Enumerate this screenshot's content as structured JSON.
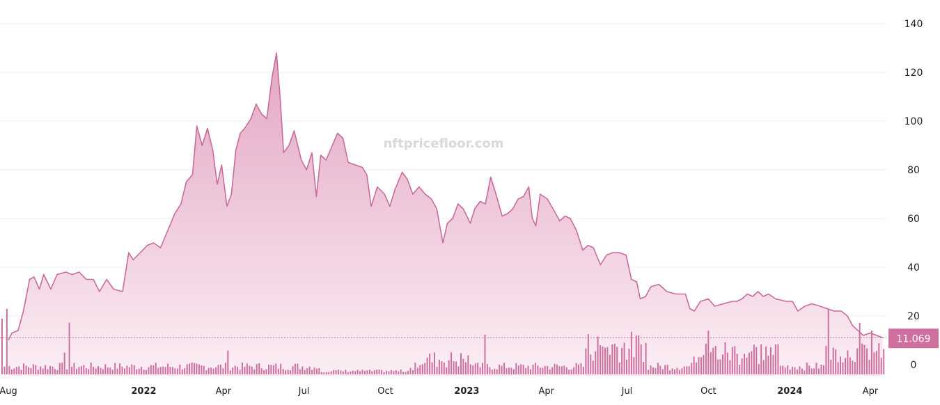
{
  "watermark": "nftpricefloor.com",
  "colors": {
    "line": "#c96b9c",
    "area_top": "#e3a6c4",
    "area_bottom": "#fbeef4",
    "volume": "#cf6f9f",
    "last_bg": "#cf6f9f"
  },
  "chart_data": {
    "type": "area",
    "ylim": [
      -5,
      142
    ],
    "y_ticks": [
      0,
      20,
      40,
      60,
      80,
      100,
      120,
      140
    ],
    "x_ticks": [
      {
        "label": "Aug",
        "date": "2021-08-01",
        "bold": false
      },
      {
        "label": "2022",
        "date": "2022-01-01",
        "bold": true
      },
      {
        "label": "Apr",
        "date": "2022-04-01",
        "bold": false
      },
      {
        "label": "Jul",
        "date": "2022-07-01",
        "bold": false
      },
      {
        "label": "Oct",
        "date": "2022-10-01",
        "bold": false
      },
      {
        "label": "2023",
        "date": "2023-01-01",
        "bold": true
      },
      {
        "label": "Apr",
        "date": "2023-04-01",
        "bold": false
      },
      {
        "label": "Jul",
        "date": "2023-07-01",
        "bold": false
      },
      {
        "label": "Oct",
        "date": "2023-10-01",
        "bold": false
      },
      {
        "label": "2024",
        "date": "2024-01-01",
        "bold": true
      },
      {
        "label": "Apr",
        "date": "2024-04-01",
        "bold": false
      }
    ],
    "last_value": "11.069",
    "last_value_num": 11.069,
    "floor_price": [
      [
        "2021-08-01",
        10
      ],
      [
        "2021-08-05",
        13
      ],
      [
        "2021-08-12",
        14
      ],
      [
        "2021-08-18",
        22
      ],
      [
        "2021-08-25",
        35
      ],
      [
        "2021-08-30",
        36
      ],
      [
        "2021-09-05",
        31
      ],
      [
        "2021-09-10",
        37
      ],
      [
        "2021-09-18",
        31
      ],
      [
        "2021-09-25",
        37
      ],
      [
        "2021-10-05",
        38
      ],
      [
        "2021-10-12",
        37
      ],
      [
        "2021-10-20",
        38
      ],
      [
        "2021-10-28",
        35
      ],
      [
        "2021-11-05",
        35
      ],
      [
        "2021-11-12",
        30
      ],
      [
        "2021-11-20",
        35
      ],
      [
        "2021-11-28",
        31
      ],
      [
        "2021-12-08",
        30
      ],
      [
        "2021-12-15",
        46
      ],
      [
        "2021-12-20",
        43
      ],
      [
        "2021-12-28",
        46
      ],
      [
        "2022-01-05",
        49
      ],
      [
        "2022-01-12",
        50
      ],
      [
        "2022-01-20",
        48
      ],
      [
        "2022-01-28",
        55
      ],
      [
        "2022-02-05",
        62
      ],
      [
        "2022-02-12",
        66
      ],
      [
        "2022-02-18",
        75
      ],
      [
        "2022-02-25",
        78
      ],
      [
        "2022-03-02",
        98
      ],
      [
        "2022-03-08",
        90
      ],
      [
        "2022-03-14",
        97
      ],
      [
        "2022-03-20",
        88
      ],
      [
        "2022-03-25",
        74
      ],
      [
        "2022-03-30",
        82
      ],
      [
        "2022-04-05",
        65
      ],
      [
        "2022-04-10",
        70
      ],
      [
        "2022-04-15",
        88
      ],
      [
        "2022-04-20",
        95
      ],
      [
        "2022-04-25",
        97
      ],
      [
        "2022-05-02",
        101
      ],
      [
        "2022-05-08",
        107
      ],
      [
        "2022-05-14",
        103
      ],
      [
        "2022-05-20",
        101
      ],
      [
        "2022-05-26",
        118
      ],
      [
        "2022-05-31",
        128
      ],
      [
        "2022-06-04",
        110
      ],
      [
        "2022-06-08",
        87
      ],
      [
        "2022-06-14",
        90
      ],
      [
        "2022-06-20",
        96
      ],
      [
        "2022-06-28",
        84
      ],
      [
        "2022-07-04",
        80
      ],
      [
        "2022-07-10",
        87
      ],
      [
        "2022-07-15",
        69
      ],
      [
        "2022-07-20",
        86
      ],
      [
        "2022-07-26",
        84
      ],
      [
        "2022-08-02",
        90
      ],
      [
        "2022-08-08",
        95
      ],
      [
        "2022-08-14",
        93
      ],
      [
        "2022-08-20",
        83
      ],
      [
        "2022-08-28",
        82
      ],
      [
        "2022-09-05",
        81
      ],
      [
        "2022-09-10",
        78
      ],
      [
        "2022-09-15",
        65
      ],
      [
        "2022-09-22",
        73
      ],
      [
        "2022-09-30",
        70
      ],
      [
        "2022-10-06",
        65
      ],
      [
        "2022-10-12",
        72
      ],
      [
        "2022-10-20",
        79
      ],
      [
        "2022-10-26",
        76
      ],
      [
        "2022-11-01",
        70
      ],
      [
        "2022-11-08",
        73
      ],
      [
        "2022-11-15",
        70
      ],
      [
        "2022-11-22",
        68
      ],
      [
        "2022-11-28",
        64
      ],
      [
        "2022-12-05",
        50
      ],
      [
        "2022-12-10",
        58
      ],
      [
        "2022-12-16",
        60
      ],
      [
        "2022-12-22",
        66
      ],
      [
        "2022-12-28",
        64
      ],
      [
        "2023-01-05",
        58
      ],
      [
        "2023-01-10",
        64
      ],
      [
        "2023-01-16",
        67
      ],
      [
        "2023-01-22",
        66
      ],
      [
        "2023-01-28",
        77
      ],
      [
        "2023-02-03",
        70
      ],
      [
        "2023-02-10",
        61
      ],
      [
        "2023-02-16",
        62
      ],
      [
        "2023-02-22",
        64
      ],
      [
        "2023-02-28",
        68
      ],
      [
        "2023-03-06",
        69
      ],
      [
        "2023-03-12",
        73
      ],
      [
        "2023-03-16",
        60
      ],
      [
        "2023-03-20",
        57
      ],
      [
        "2023-03-25",
        70
      ],
      [
        "2023-04-02",
        68
      ],
      [
        "2023-04-10",
        63
      ],
      [
        "2023-04-16",
        59
      ],
      [
        "2023-04-22",
        61
      ],
      [
        "2023-04-28",
        60
      ],
      [
        "2023-05-05",
        55
      ],
      [
        "2023-05-12",
        47
      ],
      [
        "2023-05-18",
        49
      ],
      [
        "2023-05-24",
        48
      ],
      [
        "2023-06-01",
        41
      ],
      [
        "2023-06-08",
        45
      ],
      [
        "2023-06-15",
        46
      ],
      [
        "2023-06-22",
        46
      ],
      [
        "2023-06-30",
        45
      ],
      [
        "2023-07-06",
        35
      ],
      [
        "2023-07-12",
        34
      ],
      [
        "2023-07-16",
        27
      ],
      [
        "2023-07-22",
        28
      ],
      [
        "2023-07-28",
        32
      ],
      [
        "2023-08-06",
        33
      ],
      [
        "2023-08-15",
        30
      ],
      [
        "2023-08-25",
        29
      ],
      [
        "2023-09-05",
        29
      ],
      [
        "2023-09-10",
        23
      ],
      [
        "2023-09-15",
        22
      ],
      [
        "2023-09-22",
        26
      ],
      [
        "2023-10-01",
        27
      ],
      [
        "2023-10-08",
        24
      ],
      [
        "2023-10-18",
        25
      ],
      [
        "2023-10-28",
        26
      ],
      [
        "2023-11-02",
        26
      ],
      [
        "2023-11-08",
        27
      ],
      [
        "2023-11-14",
        29
      ],
      [
        "2023-11-20",
        28
      ],
      [
        "2023-11-26",
        30
      ],
      [
        "2023-12-02",
        28
      ],
      [
        "2023-12-08",
        29
      ],
      [
        "2023-12-16",
        27
      ],
      [
        "2023-12-28",
        26
      ],
      [
        "2024-01-04",
        26
      ],
      [
        "2024-01-10",
        22
      ],
      [
        "2024-01-18",
        24
      ],
      [
        "2024-01-26",
        25
      ],
      [
        "2024-02-04",
        24
      ],
      [
        "2024-02-12",
        23
      ],
      [
        "2024-02-20",
        22
      ],
      [
        "2024-02-28",
        22
      ],
      [
        "2024-03-06",
        20
      ],
      [
        "2024-03-12",
        16
      ],
      [
        "2024-03-18",
        14
      ],
      [
        "2024-03-24",
        12
      ],
      [
        "2024-04-01",
        13
      ],
      [
        "2024-04-08",
        12
      ],
      [
        "2024-04-15",
        11.07
      ]
    ],
    "volume_seed": 7,
    "volume_scale_max": 35
  }
}
